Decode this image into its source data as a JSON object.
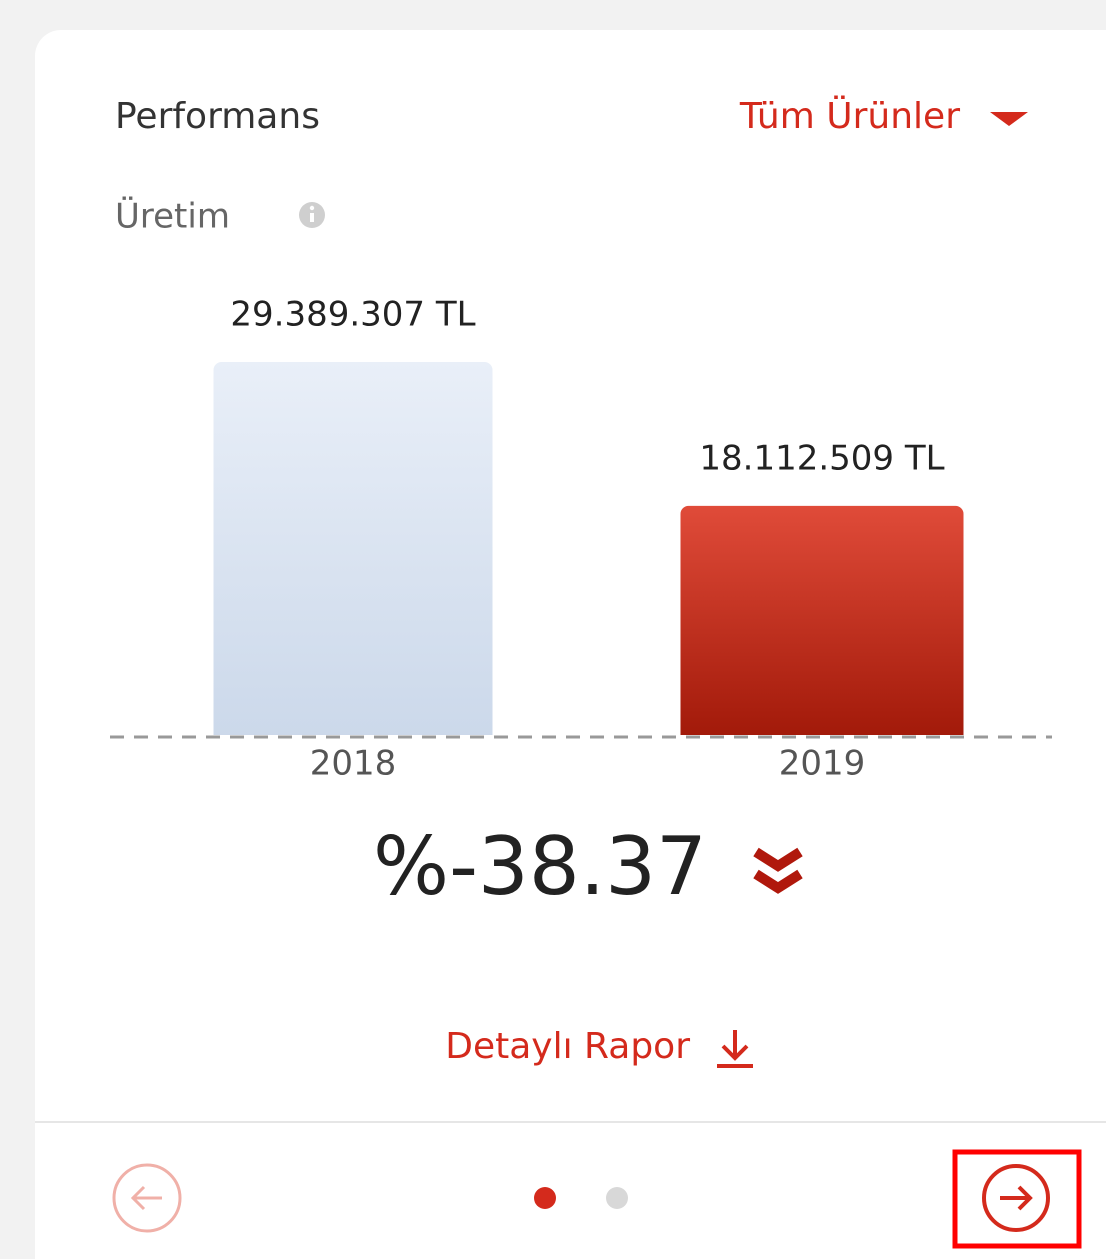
{
  "header": {
    "title": "Performans",
    "filter": "Tüm Ürünler"
  },
  "metric": {
    "label": "Üretim"
  },
  "chart_data": {
    "type": "bar",
    "categories": [
      "2018",
      "2019"
    ],
    "values": [
      29389307,
      18112509
    ],
    "value_labels": [
      "29.389.307 TL",
      "18.112.509 TL"
    ]
  },
  "change": "%-38.37",
  "report_link": "Detaylı Rapor"
}
